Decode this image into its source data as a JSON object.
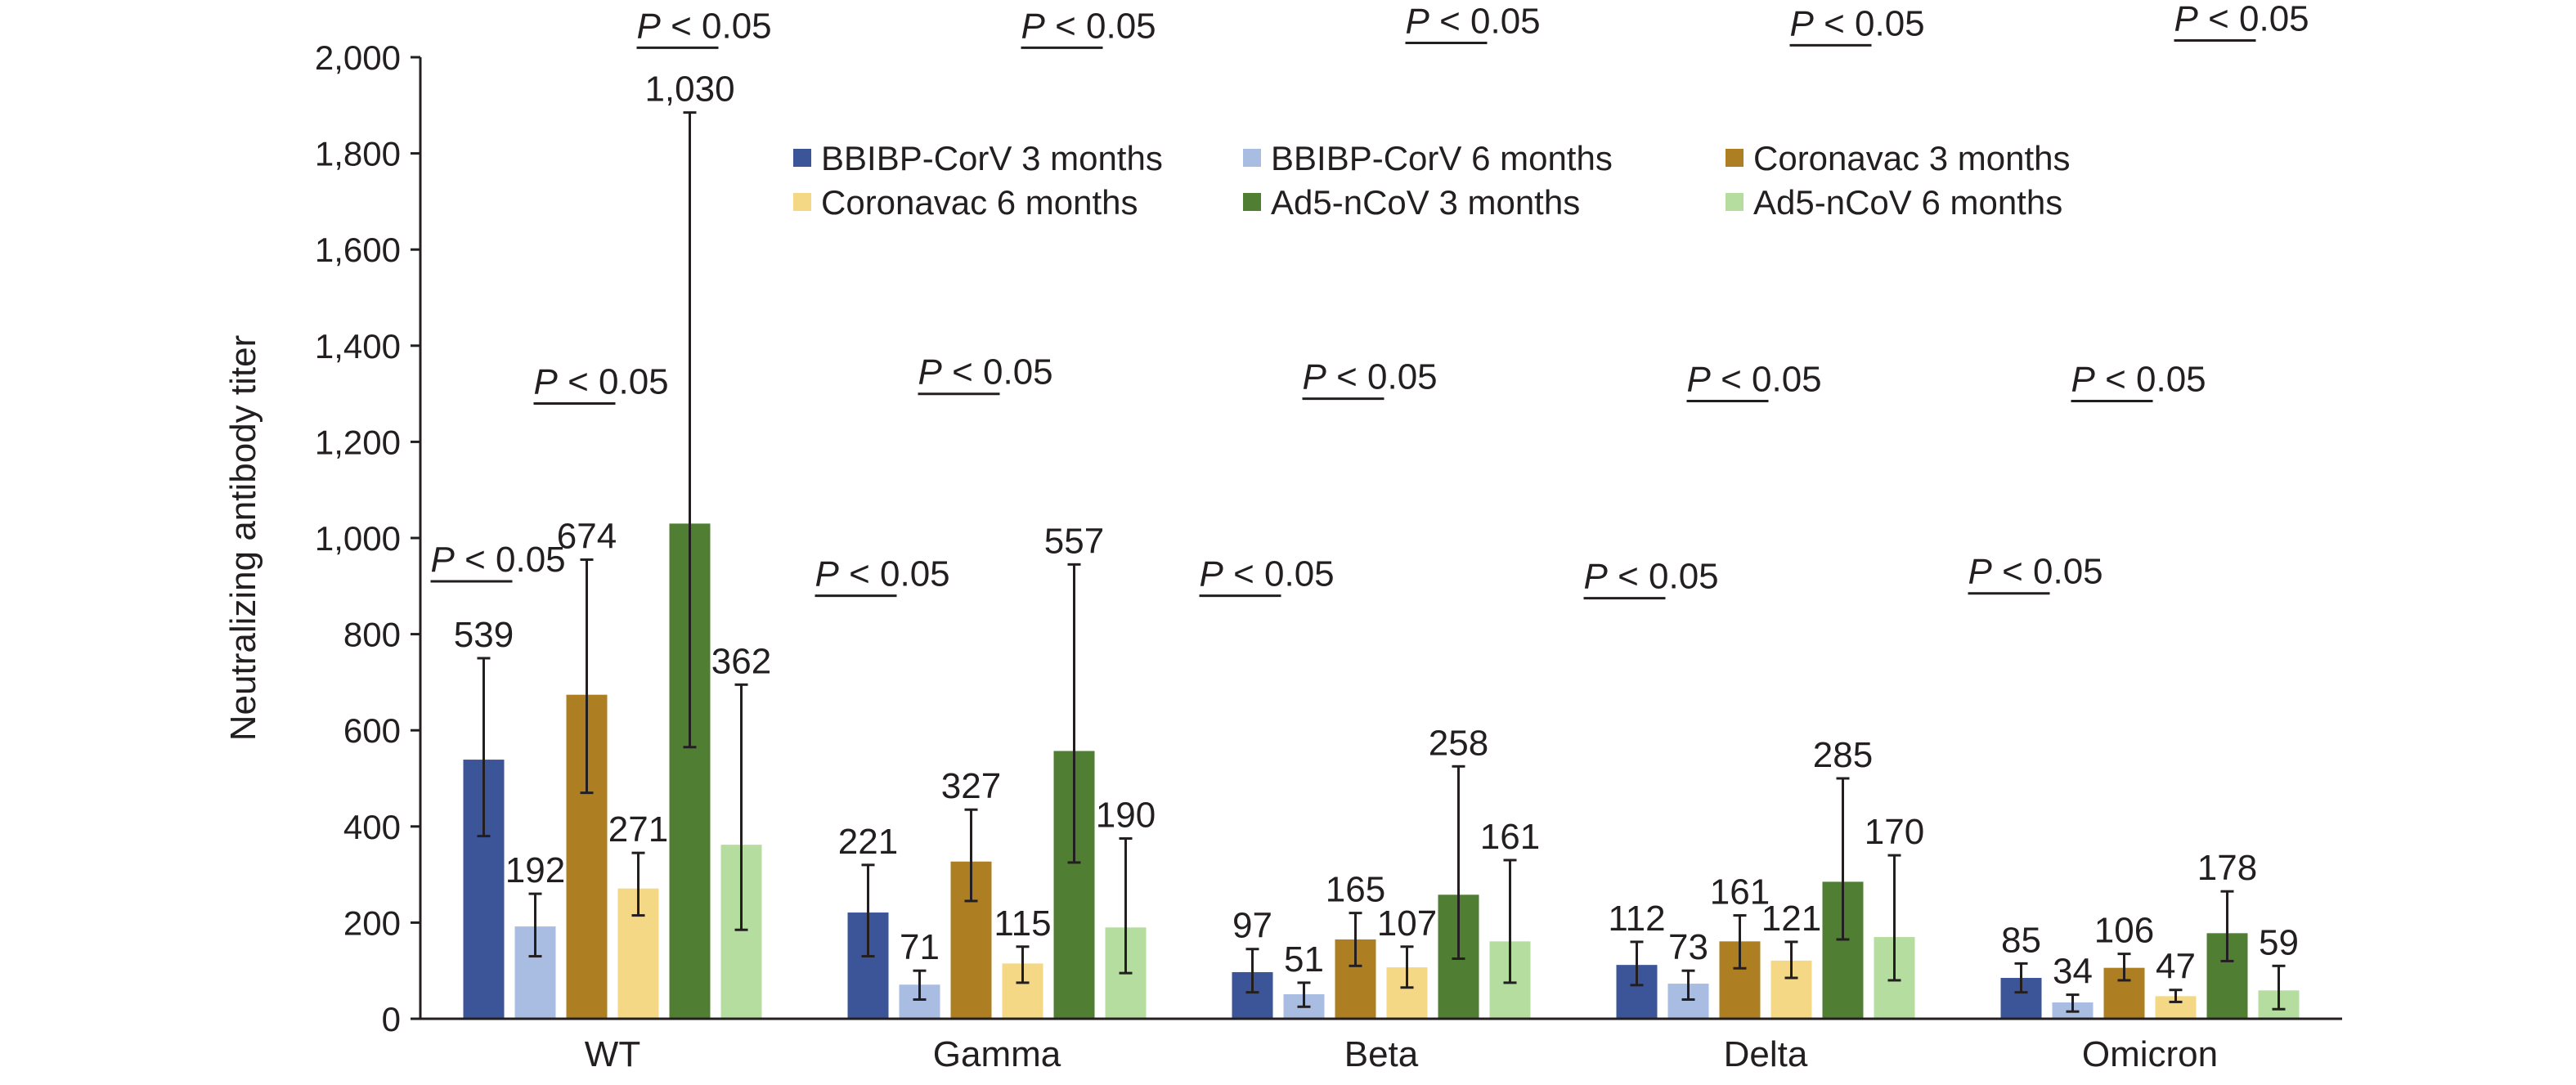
{
  "chart_data": {
    "type": "bar",
    "title": "",
    "xlabel": "",
    "ylabel": "Neutralizing antibody titer",
    "ylim": [
      0,
      2000
    ],
    "yticks": [
      0,
      200,
      400,
      600,
      800,
      1000,
      1200,
      1400,
      1600,
      1800,
      2000
    ],
    "ytick_labels": [
      "0",
      "200",
      "400",
      "600",
      "800",
      "1,000",
      "1,200",
      "1,400",
      "1,600",
      "1,800",
      "2,000"
    ],
    "grid": false,
    "legend_position": "top-center",
    "categories": [
      "WT",
      "Gamma",
      "Beta",
      "Delta",
      "Omicron"
    ],
    "series": [
      {
        "name": "BBIBP-CorV 3 months",
        "color": "#3C5599",
        "values": [
          539,
          221,
          97,
          112,
          85
        ],
        "err_low": [
          380,
          130,
          55,
          70,
          55
        ],
        "err_high": [
          750,
          320,
          145,
          160,
          115
        ]
      },
      {
        "name": "BBIBP-CorV 6 months",
        "color": "#A9BDE3",
        "values": [
          192,
          71,
          51,
          73,
          34
        ],
        "err_low": [
          130,
          40,
          25,
          40,
          15
        ],
        "err_high": [
          260,
          100,
          75,
          100,
          50
        ]
      },
      {
        "name": "Coronavac 3 months",
        "color": "#AE7F22",
        "values": [
          674,
          327,
          165,
          161,
          106
        ],
        "err_low": [
          470,
          245,
          110,
          105,
          80
        ],
        "err_high": [
          955,
          435,
          220,
          215,
          135
        ]
      },
      {
        "name": "Coronavac 6 months",
        "color": "#F4D886",
        "values": [
          271,
          115,
          107,
          121,
          47
        ],
        "err_low": [
          215,
          75,
          65,
          85,
          35
        ],
        "err_high": [
          345,
          150,
          150,
          160,
          60
        ]
      },
      {
        "name": "Ad5-nCoV 3 months",
        "color": "#507F34",
        "values": [
          1030,
          557,
          258,
          285,
          178
        ],
        "err_low": [
          565,
          325,
          125,
          165,
          120
        ],
        "err_high": [
          1885,
          945,
          525,
          500,
          265
        ]
      },
      {
        "name": "Ad5-nCoV 6 months",
        "color": "#B5DDA0",
        "values": [
          362,
          190,
          161,
          170,
          59
        ],
        "err_low": [
          185,
          95,
          75,
          80,
          20
        ],
        "err_high": [
          695,
          375,
          330,
          340,
          110
        ]
      }
    ],
    "data_labels": [
      [
        "539",
        "221",
        "97",
        "112",
        "85"
      ],
      [
        "192",
        "71",
        "51",
        "73",
        "34"
      ],
      [
        "674",
        "327",
        "165",
        "161",
        "106"
      ],
      [
        "271",
        "115",
        "107",
        "121",
        "47"
      ],
      [
        "1,030",
        "557",
        "258",
        "285",
        "178"
      ],
      [
        "362",
        "190",
        "161",
        "170",
        "59"
      ]
    ],
    "annotations": [
      {
        "category": "WT",
        "comparison": "BBIBP-CorV 3 vs 6 months",
        "text_p": "P",
        "text_rest": " < 0.05",
        "level": 920
      },
      {
        "category": "WT",
        "comparison": "Coronavac 3 vs 6 months",
        "text_p": "P",
        "text_rest": " < 0.05",
        "level": 1290
      },
      {
        "category": "WT",
        "comparison": "Ad5-nCoV 3 vs 6 months",
        "text_p": "P",
        "text_rest": " < 0.05",
        "level": 2030
      },
      {
        "category": "Gamma",
        "comparison": "BBIBP-CorV 3 vs 6 months",
        "text_p": "P",
        "text_rest": " < 0.05",
        "level": 890
      },
      {
        "category": "Gamma",
        "comparison": "Coronavac 3 vs 6 months",
        "text_p": "P",
        "text_rest": " < 0.05",
        "level": 1310
      },
      {
        "category": "Gamma",
        "comparison": "Ad5-nCoV 3 vs 6 months",
        "text_p": "P",
        "text_rest": " < 0.05",
        "level": 2030
      },
      {
        "category": "Beta",
        "comparison": "BBIBP-CorV 3 vs 6 months",
        "text_p": "P",
        "text_rest": " < 0.05",
        "level": 890
      },
      {
        "category": "Beta",
        "comparison": "Coronavac 3 vs 6 months",
        "text_p": "P",
        "text_rest": " < 0.05",
        "level": 1300
      },
      {
        "category": "Beta",
        "comparison": "Ad5-nCoV 3 vs 6 months",
        "text_p": "P",
        "text_rest": " < 0.05",
        "level": 2040
      },
      {
        "category": "Delta",
        "comparison": "BBIBP-CorV 3 vs 6 months",
        "text_p": "P",
        "text_rest": " < 0.05",
        "level": 885
      },
      {
        "category": "Delta",
        "comparison": "Coronavac 3 vs 6 months",
        "text_p": "P",
        "text_rest": " < 0.05",
        "level": 1295
      },
      {
        "category": "Delta",
        "comparison": "Ad5-nCoV 3 vs 6 months",
        "text_p": "P",
        "text_rest": " < 0.05",
        "level": 2035
      },
      {
        "category": "Omicron",
        "comparison": "BBIBP-CorV 3 vs 6 months",
        "text_p": "P",
        "text_rest": " < 0.05",
        "level": 895
      },
      {
        "category": "Omicron",
        "comparison": "Coronavac 3 vs 6 months",
        "text_p": "P",
        "text_rest": " < 0.05",
        "level": 1295
      },
      {
        "category": "Omicron",
        "comparison": "Ad5-nCoV 3 vs 6 months",
        "text_p": "P",
        "text_rest": " < 0.05",
        "level": 2045
      }
    ]
  }
}
